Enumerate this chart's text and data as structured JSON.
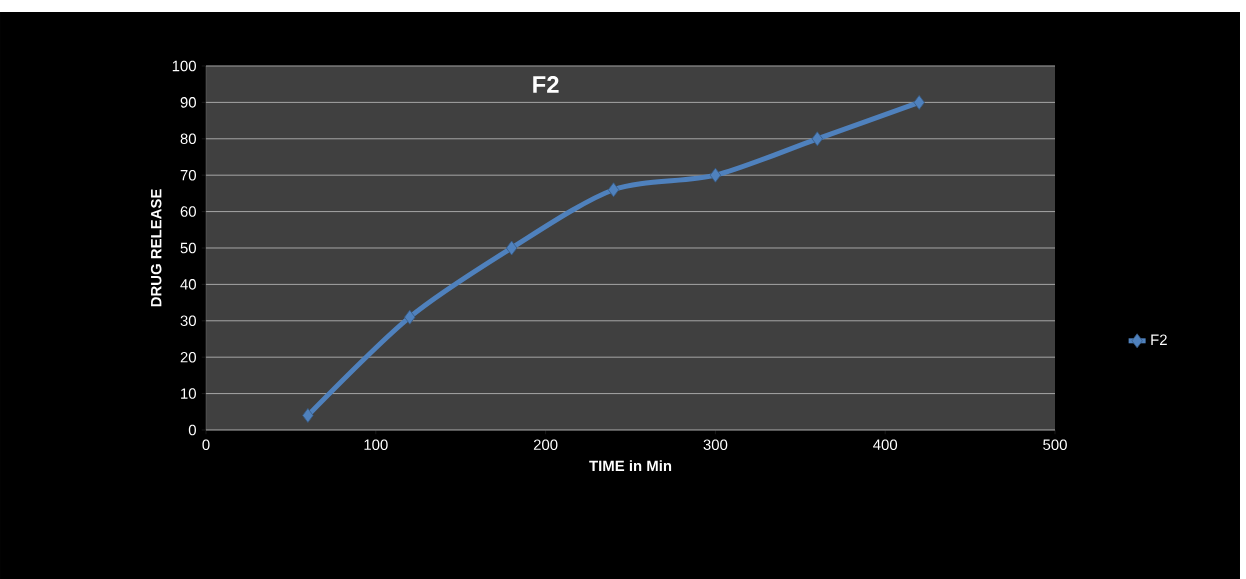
{
  "chart_data": {
    "type": "line",
    "title": "F2",
    "xlabel": "TIME in Min",
    "ylabel": "DRUG RELEASE",
    "x": [
      60,
      120,
      180,
      240,
      300,
      360,
      420
    ],
    "series": [
      {
        "name": "F2",
        "color": "#4f81bd",
        "values": [
          4,
          31,
          50,
          66,
          70,
          80,
          90
        ]
      }
    ],
    "xlim": [
      0,
      500
    ],
    "xticks": [
      0,
      100,
      200,
      300,
      400,
      500
    ],
    "ylim": [
      0,
      100
    ],
    "yticks": [
      0,
      10,
      20,
      30,
      40,
      50,
      60,
      70,
      80,
      90,
      100
    ],
    "grid": "y",
    "legend": "right",
    "marker": "diamond",
    "line_style": "solid"
  }
}
